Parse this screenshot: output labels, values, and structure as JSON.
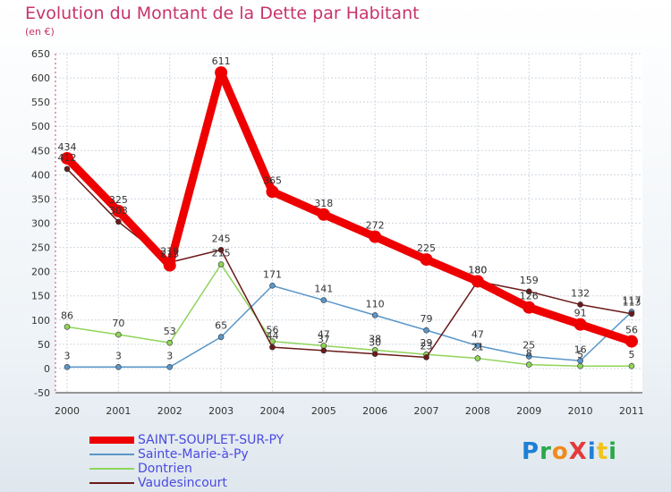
{
  "header": {
    "title": "Evolution du Montant de la Dette par Habitant",
    "unit": "(en €)"
  },
  "logo": {
    "text": "ProXiti",
    "colors": [
      "#1e7fd6",
      "#2aa84a",
      "#f08a1c",
      "#e23b3b",
      "#1e7fd6",
      "#f0c419",
      "#2aa84a"
    ]
  },
  "chart_data": {
    "type": "line",
    "title": "Evolution du Montant de la Dette par Habitant",
    "subtitle": "(en €)",
    "xlabel": "",
    "ylabel": "",
    "ylim": [
      -50,
      650
    ],
    "yticks": [
      -50,
      0,
      50,
      100,
      150,
      200,
      250,
      300,
      350,
      400,
      450,
      500,
      550,
      600,
      650
    ],
    "x": [
      "2000",
      "2001",
      "2002",
      "2003",
      "2004",
      "2005",
      "2006",
      "2007",
      "2008",
      "2009",
      "2010",
      "2011"
    ],
    "grid": true,
    "legend_position": "bottom-left",
    "series": [
      {
        "name": "SAINT-SOUPLET-SUR-PY",
        "color": "#ee0000",
        "values": [
          434,
          325,
          213,
          611,
          365,
          318,
          272,
          225,
          180,
          126,
          91,
          56
        ]
      },
      {
        "name": "Sainte-Marie-à-Py",
        "color": "#5a96c8",
        "values": [
          3,
          3,
          3,
          65,
          171,
          141,
          110,
          79,
          47,
          25,
          16,
          117
        ]
      },
      {
        "name": "Dontrien",
        "color": "#8fd45a",
        "values": [
          86,
          70,
          53,
          215,
          56,
          47,
          38,
          29,
          21,
          8,
          5,
          5
        ]
      },
      {
        "name": "Vaudesincourt",
        "color": "#6b1a1a",
        "values": [
          412,
          303,
          219,
          245,
          44,
          37,
          30,
          23,
          180,
          159,
          132,
          113
        ]
      }
    ]
  }
}
